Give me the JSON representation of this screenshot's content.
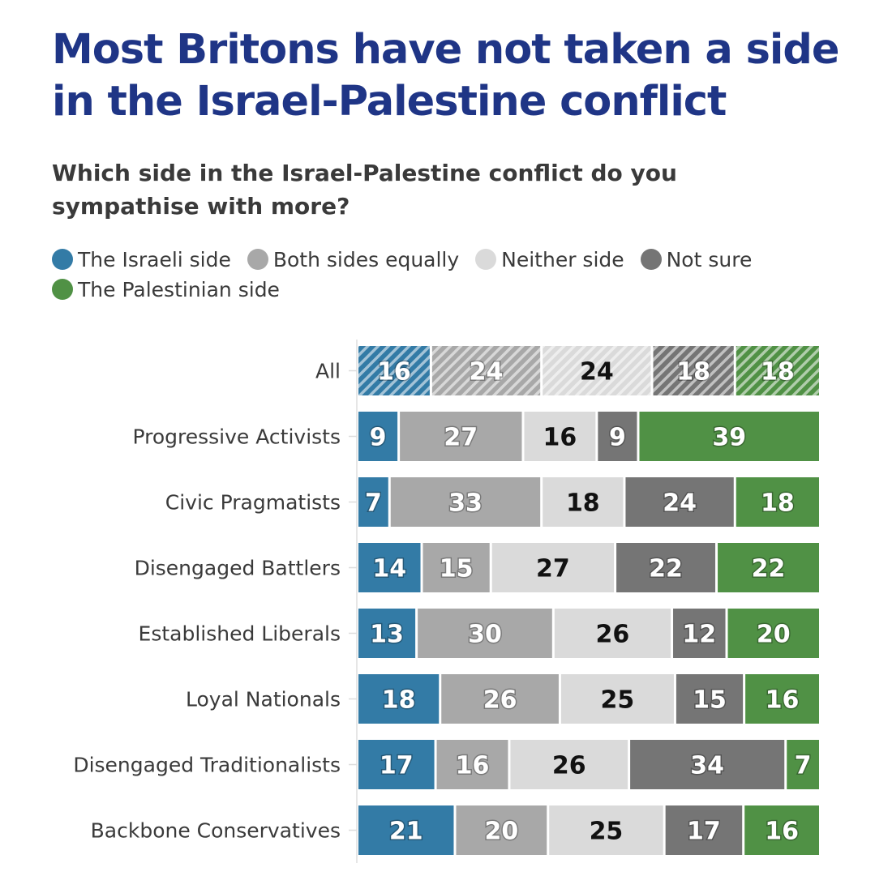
{
  "title": "Most Britons have not taken a side in the Israel-Palestine conflict",
  "subtitle": "Which side in the Israel-Palestine conflict do you sympathise with more?",
  "colors": {
    "israeli": "#337ba6",
    "both": "#a8a8a8",
    "neither": "#dadada",
    "not_sure": "#757575",
    "palestinian": "#509145"
  },
  "chart_data": {
    "type": "bar",
    "orientation": "horizontal",
    "stacked": true,
    "categories": [
      "All",
      "Progressive Activists",
      "Civic Pragmatists",
      "Disengaged Battlers",
      "Established Liberals",
      "Loyal Nationals",
      "Disengaged Traditionalists",
      "Backbone Conservatives"
    ],
    "series": [
      {
        "name": "The Israeli side",
        "key": "israeli",
        "values": [
          16,
          9,
          7,
          14,
          13,
          18,
          17,
          21
        ]
      },
      {
        "name": "Both sides equally",
        "key": "both",
        "values": [
          24,
          27,
          33,
          15,
          30,
          26,
          16,
          20
        ]
      },
      {
        "name": "Neither side",
        "key": "neither",
        "values": [
          24,
          16,
          18,
          27,
          26,
          25,
          26,
          25
        ]
      },
      {
        "name": "Not sure",
        "key": "not_sure",
        "values": [
          18,
          9,
          24,
          22,
          12,
          15,
          34,
          17
        ]
      },
      {
        "name": "The Palestinian side",
        "key": "palestinian",
        "values": [
          18,
          39,
          18,
          22,
          20,
          16,
          7,
          16
        ]
      }
    ],
    "hatched_categories": [
      "All"
    ],
    "legend_position": "top-left",
    "grid": false
  }
}
